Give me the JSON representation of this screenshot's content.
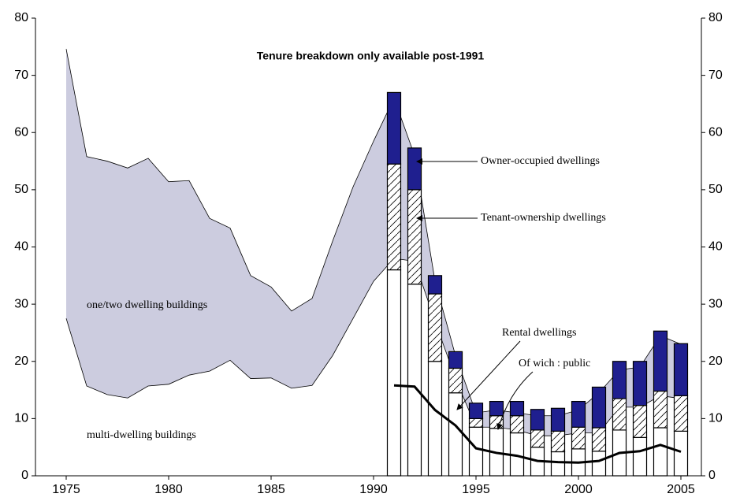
{
  "chart_data": {
    "type": "combo",
    "title": "Tenure breakdown only available post-1991",
    "x": [
      1975,
      1976,
      1977,
      1978,
      1979,
      1980,
      1981,
      1982,
      1983,
      1984,
      1985,
      1986,
      1987,
      1988,
      1989,
      1990,
      1991,
      1992,
      1993,
      1994,
      1995,
      1996,
      1997,
      1998,
      1999,
      2000,
      2001,
      2002,
      2003,
      2004,
      2005
    ],
    "xlim": [
      1973.5,
      2006
    ],
    "xticks": [
      1975,
      1980,
      1985,
      1990,
      1995,
      2000,
      2005
    ],
    "ylim": [
      0,
      80
    ],
    "yticks": [
      0,
      10,
      20,
      30,
      40,
      50,
      60,
      70,
      80
    ],
    "y2lim": [
      0,
      80
    ],
    "y2ticks": [
      0,
      10,
      20,
      30,
      40,
      50,
      60,
      70,
      80
    ],
    "series": [
      {
        "name": "multi-dwelling buildings",
        "type": "area",
        "color": "#ffffff",
        "values": [
          27.5,
          15.7,
          14.2,
          13.6,
          15.7,
          16,
          17.6,
          18.3,
          20.2,
          17,
          17.1,
          15.3,
          15.8,
          21,
          27.5,
          34,
          38,
          37.5,
          27,
          17,
          8.5,
          8.5,
          8,
          7,
          7,
          7.5,
          7.5,
          12,
          12,
          14,
          13.5
        ]
      },
      {
        "name": "one/two dwelling buildings",
        "type": "area",
        "color": "#ccccdf",
        "values": [
          47.1,
          40.1,
          40.8,
          40.2,
          39.8,
          35.4,
          34,
          26.7,
          23.1,
          18,
          15.9,
          13.5,
          15.2,
          20,
          23,
          24.5,
          28,
          18.5,
          7,
          4,
          2.5,
          3,
          3,
          3.5,
          3.5,
          4,
          7,
          6.5,
          7,
          10.5,
          9.5
        ]
      },
      {
        "name": "Rental dwellings",
        "type": "bar",
        "color": "#ffffff",
        "values": [
          null,
          null,
          null,
          null,
          null,
          null,
          null,
          null,
          null,
          null,
          null,
          null,
          null,
          null,
          null,
          null,
          36,
          33.5,
          20,
          14.5,
          8.5,
          8.3,
          7.5,
          5,
          4.2,
          4.7,
          4.3,
          8,
          6.7,
          8.4,
          7.8
        ]
      },
      {
        "name": "Tenant-ownership dwellings",
        "type": "bar",
        "color": "hatch",
        "values": [
          null,
          null,
          null,
          null,
          null,
          null,
          null,
          null,
          null,
          null,
          null,
          null,
          null,
          null,
          null,
          null,
          18.5,
          16.5,
          11.8,
          4.3,
          1.5,
          2.2,
          3,
          3,
          3.6,
          3.8,
          4.1,
          5.5,
          5.6,
          6.4,
          6.2
        ]
      },
      {
        "name": "Owner-occupied dwellings",
        "type": "bar",
        "color": "#1f1f8f",
        "values": [
          null,
          null,
          null,
          null,
          null,
          null,
          null,
          null,
          null,
          null,
          null,
          null,
          null,
          null,
          null,
          null,
          12.5,
          7.3,
          3.2,
          2.9,
          2.7,
          2.5,
          2.5,
          3.6,
          4,
          4.5,
          7.1,
          6.5,
          7.7,
          10.5,
          9.1
        ]
      },
      {
        "name": "Of wich : public",
        "type": "line",
        "color": "#000000",
        "values": [
          null,
          null,
          null,
          null,
          null,
          null,
          null,
          null,
          null,
          null,
          null,
          null,
          null,
          null,
          null,
          null,
          15.8,
          15.6,
          11.5,
          8.8,
          4.8,
          4,
          3.5,
          2.6,
          2.4,
          2.3,
          2.6,
          4,
          4.3,
          5.4,
          4.2
        ]
      }
    ]
  }
}
